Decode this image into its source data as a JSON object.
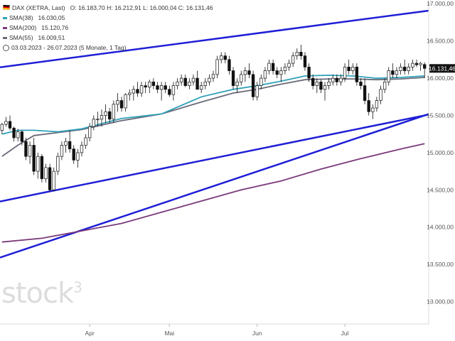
{
  "header": {
    "flag": "🇩🇪",
    "title": "DAX (XETRA, Last)",
    "ohlc": "O: 16.183,70  H: 16.212,91  L: 16.000,04  C: 16.131,46",
    "sma38": {
      "label": "SMA(38)",
      "value": "16.030,05",
      "color": "#2ea0b8"
    },
    "sma200": {
      "label": "SMA(200)",
      "value": "15.120,76",
      "color": "#7a3a7a"
    },
    "sma55": {
      "label": "SMA(55)",
      "value": "16.009,51",
      "color": "#6a6a7a"
    },
    "period": "03.03.2023 - 26.07.2023  (5 Monate, 1 Tag)"
  },
  "watermark": "stock",
  "watermark_sup": "3",
  "price_tag": "16.131,46",
  "chart_data": {
    "type": "candlestick",
    "title": "DAX (XETRA, Last)",
    "y_ticks": [
      "17.000,00",
      "16.500,00",
      "16.000,00",
      "15.500,00",
      "15.000,00",
      "14.500,00",
      "14.000,00",
      "13.500,00",
      "13.000,00"
    ],
    "y_tick_values": [
      17000,
      16500,
      16000,
      15500,
      15000,
      14500,
      14000,
      13500,
      13000
    ],
    "ylim": [
      12700,
      17050
    ],
    "x_labels": [
      "Apr",
      "Mai",
      "Jun",
      "Jul"
    ],
    "x_label_index": [
      22,
      42,
      64,
      86
    ],
    "n_bars": 107,
    "candles": [
      [
        15300,
        15400,
        15250,
        15380
      ],
      [
        15380,
        15480,
        15350,
        15420
      ],
      [
        15420,
        15500,
        15300,
        15330
      ],
      [
        15330,
        15350,
        15150,
        15200
      ],
      [
        15200,
        15320,
        15150,
        15280
      ],
      [
        15280,
        15300,
        15100,
        15150
      ],
      [
        15150,
        15200,
        14900,
        14950
      ],
      [
        14950,
        15150,
        14850,
        15100
      ],
      [
        15100,
        15200,
        14700,
        14750
      ],
      [
        14750,
        15000,
        14650,
        14950
      ],
      [
        14950,
        14980,
        14600,
        14650
      ],
      [
        14650,
        14850,
        14600,
        14800
      ],
      [
        14800,
        14850,
        14480,
        14500
      ],
      [
        14500,
        14800,
        14480,
        14750
      ],
      [
        14750,
        15000,
        14700,
        14950
      ],
      [
        14950,
        15150,
        14900,
        15100
      ],
      [
        15100,
        15200,
        15000,
        15150
      ],
      [
        15150,
        15300,
        15000,
        15050
      ],
      [
        15050,
        15100,
        14850,
        14900
      ],
      [
        14900,
        15050,
        14800,
        15000
      ],
      [
        15000,
        15150,
        14950,
        15100
      ],
      [
        15100,
        15250,
        15050,
        15200
      ],
      [
        15200,
        15400,
        15150,
        15350
      ],
      [
        15350,
        15500,
        15300,
        15450
      ],
      [
        15450,
        15550,
        15350,
        15450
      ],
      [
        15450,
        15580,
        15350,
        15500
      ],
      [
        15500,
        15650,
        15400,
        15550
      ],
      [
        15550,
        15600,
        15400,
        15450
      ],
      [
        15450,
        15700,
        15400,
        15650
      ],
      [
        15650,
        15800,
        15550,
        15700
      ],
      [
        15700,
        15750,
        15550,
        15600
      ],
      [
        15600,
        15800,
        15550,
        15780
      ],
      [
        15780,
        15850,
        15700,
        15800
      ],
      [
        15800,
        15900,
        15700,
        15850
      ],
      [
        15850,
        15950,
        15750,
        15800
      ],
      [
        15800,
        15950,
        15750,
        15900
      ],
      [
        15900,
        15950,
        15800,
        15880
      ],
      [
        15880,
        15980,
        15800,
        15950
      ],
      [
        15950,
        16000,
        15850,
        15900
      ],
      [
        15900,
        15950,
        15800,
        15850
      ],
      [
        15850,
        15950,
        15700,
        15900
      ],
      [
        15900,
        15950,
        15800,
        15850
      ],
      [
        15850,
        15900,
        15750,
        15780
      ],
      [
        15780,
        15950,
        15700,
        15900
      ],
      [
        15900,
        16000,
        15850,
        15950
      ],
      [
        15950,
        16050,
        15900,
        16000
      ],
      [
        16000,
        16050,
        15880,
        15900
      ],
      [
        15900,
        16000,
        15850,
        15950
      ],
      [
        15950,
        16050,
        15900,
        16000
      ],
      [
        16000,
        16100,
        15850,
        15850
      ],
      [
        15850,
        15950,
        15800,
        15900
      ],
      [
        15900,
        16000,
        15850,
        15950
      ],
      [
        15950,
        16050,
        15900,
        16000
      ],
      [
        16000,
        16100,
        15950,
        16050
      ],
      [
        16050,
        16300,
        16000,
        16250
      ],
      [
        16250,
        16350,
        16200,
        16300
      ],
      [
        16300,
        16350,
        16200,
        16250
      ],
      [
        16250,
        16300,
        16050,
        16100
      ],
      [
        16100,
        16150,
        15850,
        15900
      ],
      [
        15900,
        16000,
        15800,
        15950
      ],
      [
        15950,
        16100,
        15900,
        16050
      ],
      [
        16050,
        16150,
        15950,
        16100
      ],
      [
        16100,
        16200,
        16000,
        16050
      ],
      [
        16050,
        16100,
        15700,
        15750
      ],
      [
        15750,
        15950,
        15700,
        15900
      ],
      [
        15900,
        16050,
        15850,
        16000
      ],
      [
        16000,
        16150,
        15950,
        16100
      ],
      [
        16100,
        16250,
        16050,
        16200
      ],
      [
        16200,
        16250,
        16050,
        16100
      ],
      [
        16100,
        16150,
        16000,
        16050
      ],
      [
        16050,
        16150,
        15950,
        16100
      ],
      [
        16100,
        16200,
        16050,
        16150
      ],
      [
        16150,
        16250,
        16100,
        16200
      ],
      [
        16200,
        16350,
        16150,
        16300
      ],
      [
        16300,
        16400,
        16250,
        16350
      ],
      [
        16350,
        16450,
        16250,
        16300
      ],
      [
        16300,
        16350,
        16100,
        16150
      ],
      [
        16150,
        16200,
        15950,
        16000
      ],
      [
        16000,
        16050,
        15850,
        15900
      ],
      [
        15900,
        16000,
        15800,
        15950
      ],
      [
        15950,
        15980,
        15800,
        15850
      ],
      [
        15850,
        15950,
        15700,
        15900
      ],
      [
        15900,
        16000,
        15850,
        15950
      ],
      [
        15950,
        16050,
        15900,
        16000
      ],
      [
        16000,
        16050,
        15900,
        15950
      ],
      [
        15950,
        16050,
        15900,
        16000
      ],
      [
        16000,
        16200,
        15950,
        16150
      ],
      [
        16150,
        16250,
        16050,
        16100
      ],
      [
        16100,
        16200,
        16050,
        16150
      ],
      [
        16150,
        16200,
        15900,
        15950
      ],
      [
        15950,
        16000,
        15850,
        15900
      ],
      [
        15900,
        16000,
        15650,
        15700
      ],
      [
        15700,
        15800,
        15500,
        15550
      ],
      [
        15550,
        15650,
        15450,
        15600
      ],
      [
        15600,
        15750,
        15550,
        15700
      ],
      [
        15700,
        15900,
        15650,
        15850
      ],
      [
        15850,
        16000,
        15800,
        15950
      ],
      [
        15950,
        16150,
        15900,
        16100
      ],
      [
        16100,
        16200,
        16000,
        16050
      ],
      [
        16050,
        16150,
        16000,
        16100
      ],
      [
        16100,
        16200,
        16050,
        16150
      ],
      [
        16150,
        16250,
        16050,
        16100
      ],
      [
        16100,
        16200,
        16050,
        16150
      ],
      [
        16150,
        16250,
        16100,
        16200
      ],
      [
        16200,
        16250,
        16150,
        16180
      ],
      [
        16180,
        16220,
        16100,
        16200
      ],
      [
        16183.7,
        16212.91,
        16000.04,
        16131.46
      ]
    ],
    "sma38": [
      [
        0,
        15250
      ],
      [
        4,
        15300
      ],
      [
        8,
        15300
      ],
      [
        14,
        15280
      ],
      [
        20,
        15320
      ],
      [
        30,
        15460
      ],
      [
        40,
        15520
      ],
      [
        50,
        15750
      ],
      [
        58,
        15850
      ],
      [
        64,
        15900
      ],
      [
        70,
        15960
      ],
      [
        76,
        16030
      ],
      [
        82,
        16040
      ],
      [
        88,
        16030
      ],
      [
        94,
        16000
      ],
      [
        100,
        16010
      ],
      [
        106,
        16030
      ]
    ],
    "sma55": [
      [
        0,
        14950
      ],
      [
        4,
        15100
      ],
      [
        8,
        15230
      ],
      [
        14,
        15270
      ],
      [
        20,
        15310
      ],
      [
        30,
        15430
      ],
      [
        40,
        15520
      ],
      [
        50,
        15680
      ],
      [
        58,
        15800
      ],
      [
        64,
        15850
      ],
      [
        70,
        15920
      ],
      [
        76,
        15980
      ],
      [
        82,
        15990
      ],
      [
        88,
        15990
      ],
      [
        94,
        15980
      ],
      [
        100,
        15990
      ],
      [
        106,
        16010
      ]
    ],
    "sma200": [
      [
        0,
        13800
      ],
      [
        10,
        13850
      ],
      [
        20,
        13950
      ],
      [
        30,
        14050
      ],
      [
        40,
        14200
      ],
      [
        50,
        14350
      ],
      [
        60,
        14500
      ],
      [
        70,
        14620
      ],
      [
        80,
        14780
      ],
      [
        90,
        14920
      ],
      [
        100,
        15050
      ],
      [
        106,
        15121
      ]
    ],
    "trendlines": [
      {
        "from": [
          0,
          16150
        ],
        "to": [
          106,
          16900
        ]
      },
      {
        "from": [
          0,
          14350
        ],
        "to": [
          106,
          15500
        ]
      },
      {
        "from": [
          0,
          13600
        ],
        "to": [
          106,
          15500
        ]
      }
    ],
    "grid": false
  }
}
